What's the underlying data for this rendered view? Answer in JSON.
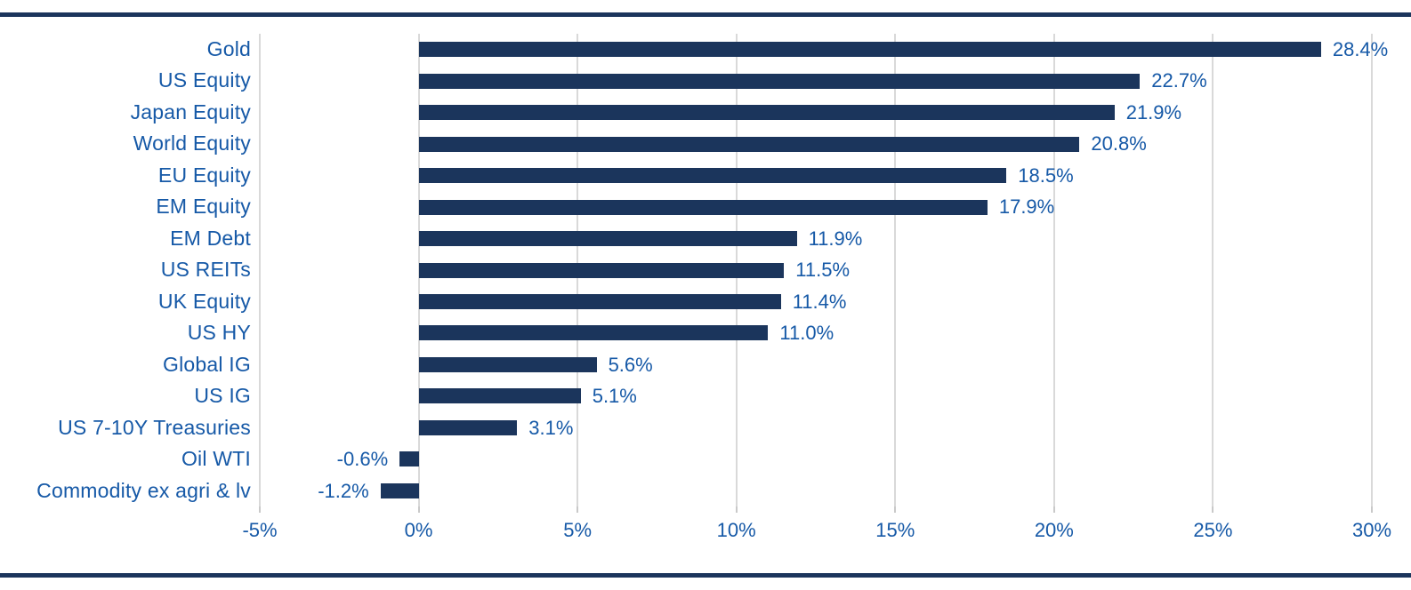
{
  "page": {
    "background": "#FFFFFF",
    "top_rule_color": "#1B355C",
    "bottom_rule_color": "#1B355C"
  },
  "chart_data": {
    "type": "bar",
    "orientation": "horizontal",
    "title": "",
    "xlabel": "",
    "ylabel": "",
    "categories": [
      "Gold",
      "US Equity",
      "Japan Equity",
      "World Equity",
      "EU Equity",
      "EM Equity",
      "EM Debt",
      "US REITs",
      "UK Equity",
      "US HY",
      "Global IG",
      "US IG",
      "US 7-10Y Treasuries",
      "Oil WTI",
      "Commodity ex agri & lv"
    ],
    "values": [
      28.4,
      22.7,
      21.9,
      20.8,
      18.5,
      17.9,
      11.9,
      11.5,
      11.4,
      11.0,
      5.6,
      5.1,
      3.1,
      -0.6,
      -1.2
    ],
    "value_labels": [
      "28.4%",
      "22.7%",
      "21.9%",
      "20.8%",
      "18.5%",
      "17.9%",
      "11.9%",
      "11.5%",
      "11.4%",
      "11.0%",
      "5.6%",
      "5.1%",
      "3.1%",
      "-0.6%",
      "-1.2%"
    ],
    "xlim": [
      -5,
      30
    ],
    "x_ticks": [
      -5,
      0,
      5,
      10,
      15,
      20,
      25,
      30
    ],
    "x_tick_labels": [
      "-5%",
      "0%",
      "5%",
      "10%",
      "15%",
      "20%",
      "25%",
      "30%"
    ],
    "grid": "vertical-only",
    "legend": "none",
    "colors": {
      "bar": "#1B355C",
      "text_blue": "#1659A7",
      "gridline": "#D9D9D9",
      "tick": "#C9C9C9"
    }
  }
}
